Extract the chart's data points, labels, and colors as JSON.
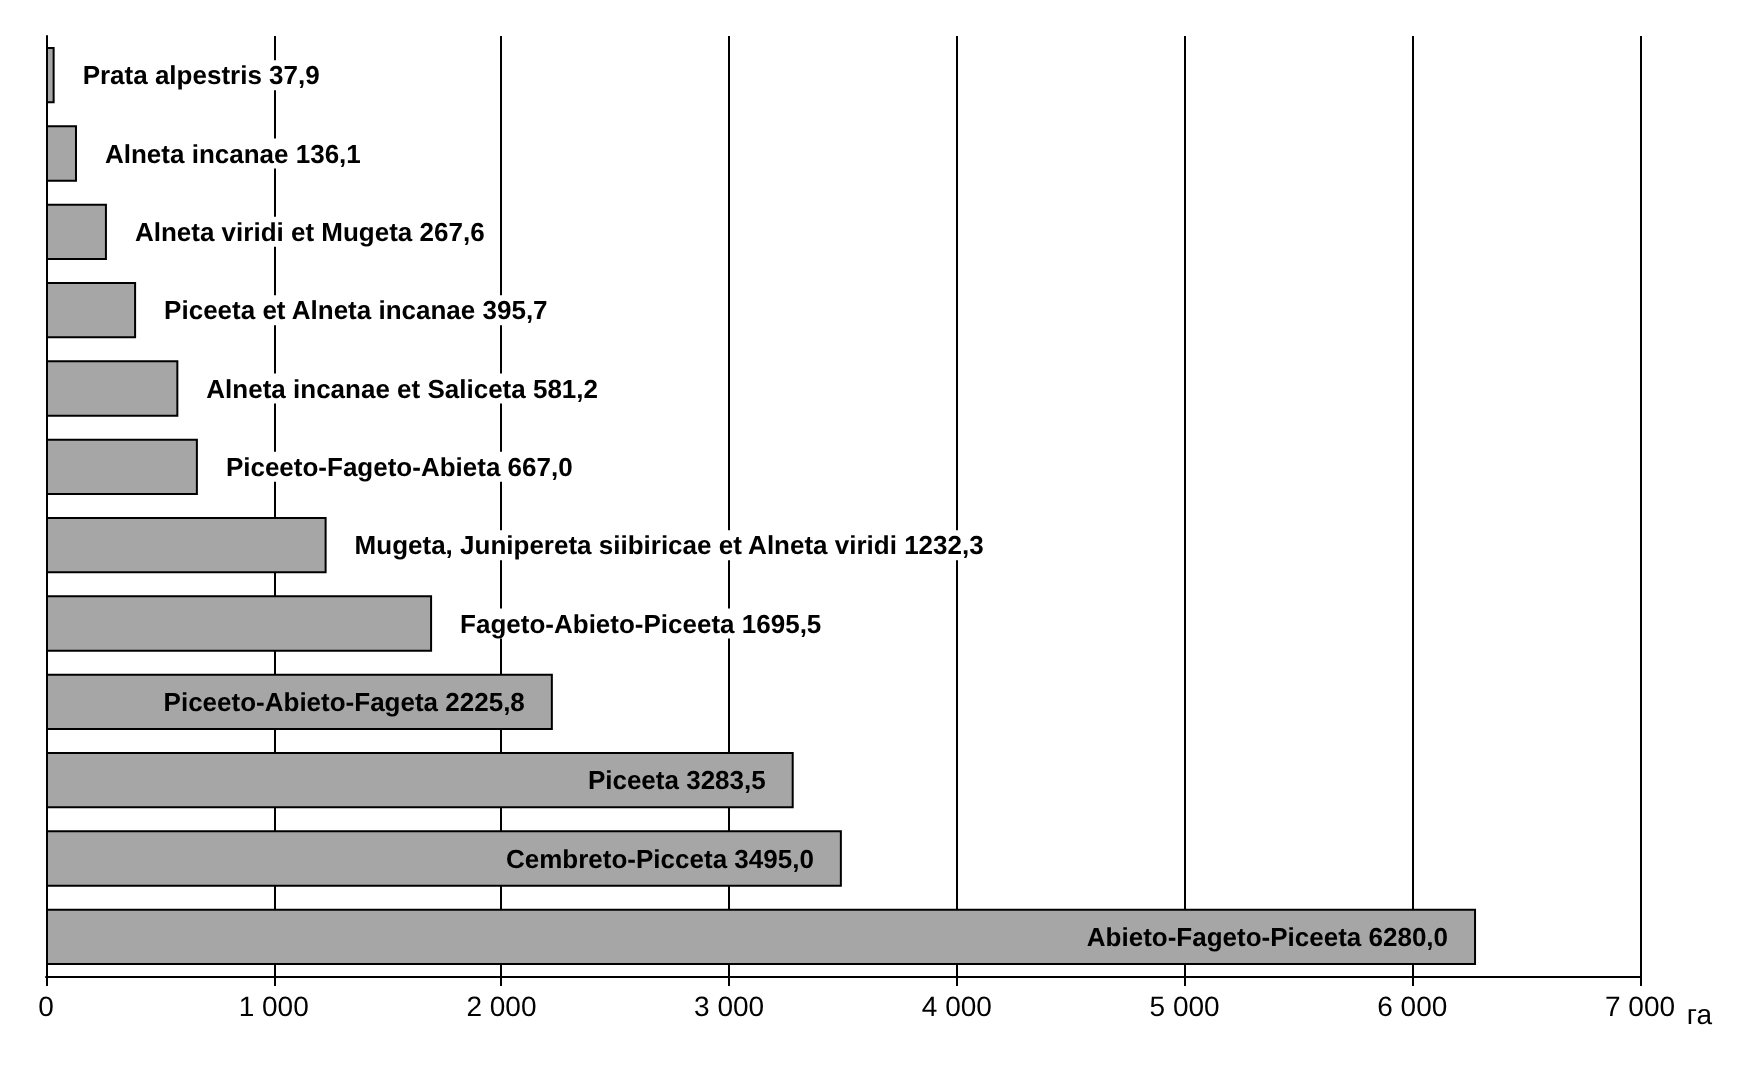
{
  "chart_data": {
    "type": "bar",
    "orientation": "horizontal",
    "categories": [
      null,
      null,
      null,
      null,
      null,
      null,
      null,
      null,
      null,
      null,
      null,
      null
    ],
    "values": [
      37.9,
      136.1,
      267.6,
      395.7,
      581.2,
      667.0,
      1232.3,
      1695.5,
      2225.8,
      3283.5,
      3495.0,
      6280.0
    ],
    "value_labels": [
      "Prata alpestris 37,9",
      "Alneta incanae 136,1",
      "Alneta viridi et Mugeta 267,6",
      "Piceeta et Alneta incanae 395,7",
      "Alneta incanae et Saliceta 581,2",
      "Piceeto-Fageto-Abieta 667,0",
      "Mugeta, Junipereta siibiricae et Alneta viridi 1232,3",
      "Fageto-Abieto-Piceeta 1695,5",
      "Piceeto-Abieto-Fageta 2225,8",
      "Piceeta 3283,5",
      "Cembreto-Picceta 3495,0",
      "Abieto-Fageto-Piceeta 6280,0"
    ],
    "color": "#a6a6a6",
    "xlabel": "га",
    "xlim": [
      0,
      7000
    ],
    "xticks": [
      0,
      {
        "value": 1000,
        "label": "1 000"
      },
      {
        "value": 2000,
        "label": "2 000"
      },
      {
        "value": 3000,
        "label": "3 000"
      },
      {
        "value": 4000,
        "label": "4 000"
      },
      {
        "value": 5000,
        "label": "5 000"
      },
      {
        "value": 6000,
        "label": "6 000"
      },
      {
        "value": 7000,
        "label": "7 000"
      }
    ],
    "tick_labels": "x",
    "grid": "x"
  }
}
